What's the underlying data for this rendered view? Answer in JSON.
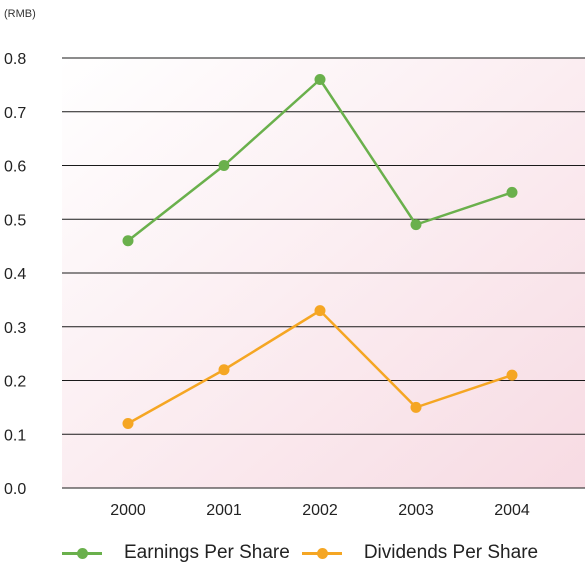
{
  "chart_data": {
    "type": "line",
    "unit_label": "(RMB)",
    "categories": [
      "2000",
      "2001",
      "2002",
      "2003",
      "2004"
    ],
    "ylim": [
      0,
      0.8
    ],
    "yticks": [
      "0.0",
      "0.1",
      "0.2",
      "0.3",
      "0.4",
      "0.5",
      "0.6",
      "0.7",
      "0.8"
    ],
    "grid": true,
    "legend_position": "bottom",
    "background": "pink-gradient",
    "series": [
      {
        "name": "Earnings Per Share",
        "color": "#6ab04c",
        "values": [
          0.46,
          0.6,
          0.76,
          0.49,
          0.55
        ]
      },
      {
        "name": "Dividends Per Share",
        "color": "#f5a623",
        "values": [
          0.12,
          0.22,
          0.33,
          0.15,
          0.21
        ]
      }
    ]
  }
}
